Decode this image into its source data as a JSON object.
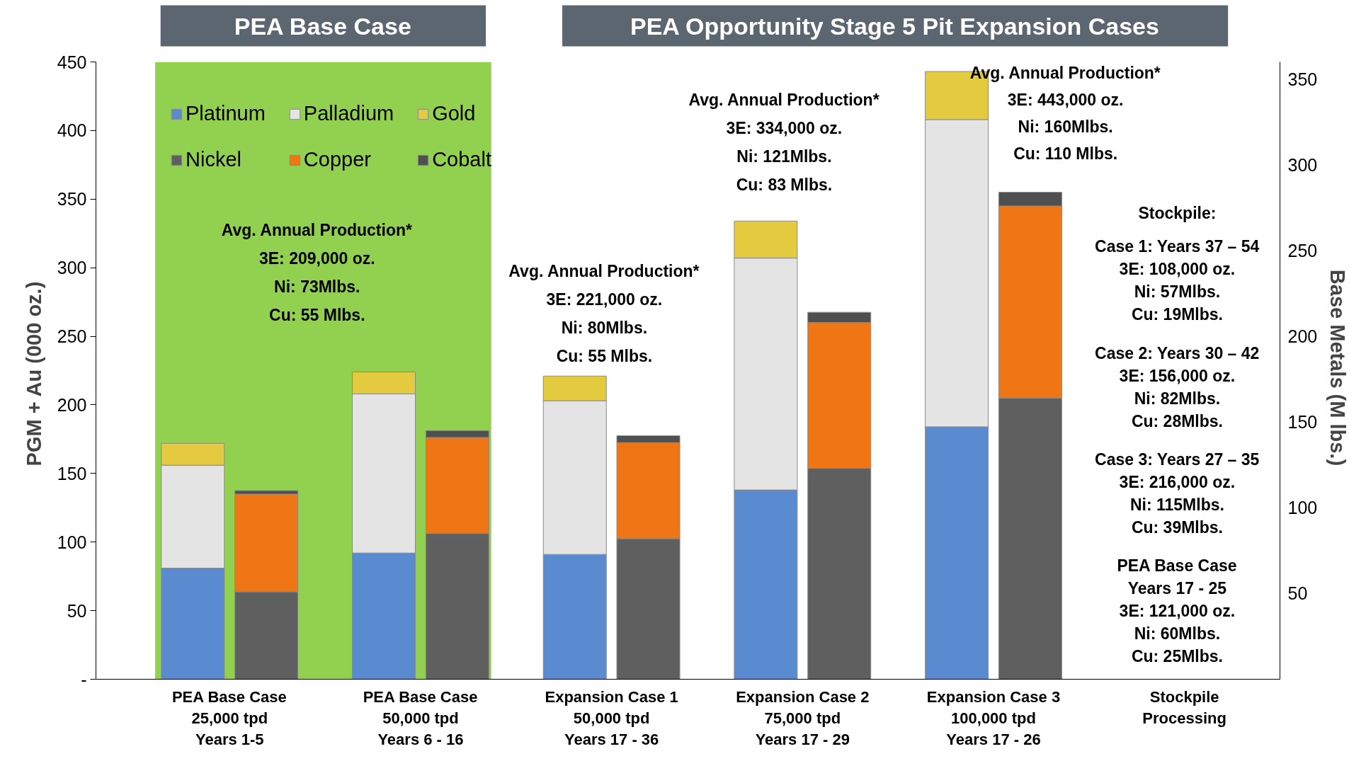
{
  "chart_data": {
    "type": "bar",
    "stacked": true,
    "categories": [
      "PEA Base Case\n25,000 tpd\nYears 1-5",
      "PEA Base Case\n50,000 tpd\nYears 6 - 16",
      "Expansion Case 1\n50,000 tpd\nYears 17 - 36",
      "Expansion Case 2\n75,000 tpd\nYears 17 - 29",
      "Expansion Case 3\n100,000 tpd\nYears 17 - 26",
      "Stockpile\nProcessing"
    ],
    "series": [
      {
        "name": "Platinum",
        "color": "#5a8ad0",
        "values": [
          81,
          92,
          91,
          138,
          184,
          null
        ]
      },
      {
        "name": "Palladium",
        "color": "#e4e4e4",
        "values": [
          75,
          116,
          112,
          169,
          224,
          null
        ]
      },
      {
        "name": "Gold",
        "color": "#e3ca3e",
        "values": [
          16,
          16,
          18,
          27,
          35,
          null
        ]
      },
      {
        "name": "Nickel",
        "color": "#5f5f5f",
        "axis": "y2",
        "values": [
          51,
          85,
          82,
          123,
          164,
          null
        ]
      },
      {
        "name": "Copper",
        "color": "#ef7515",
        "axis": "y2",
        "values": [
          57,
          56,
          56,
          85,
          112,
          null
        ]
      },
      {
        "name": "Cobalt",
        "color": "#4f4f4f",
        "axis": "y2",
        "values": [
          2,
          4,
          4,
          6,
          8,
          null
        ]
      }
    ],
    "ylabel": "PGM + Au  (000 oz.)",
    "y2label": "Base Metals  (M lbs.)",
    "ylim": [
      0,
      450
    ],
    "yticks": [
      {
        "value": 0,
        "label": "-"
      },
      50,
      100,
      150,
      200,
      250,
      300,
      350,
      400,
      450
    ],
    "y2lim": [
      0,
      360
    ],
    "y2ticks": [
      50,
      100,
      150,
      200,
      250,
      300,
      350
    ],
    "legend": "top left",
    "bands": [
      {
        "axis": "x",
        "from": "PEA Base Case\n25,000 tpd\nYears 1-5",
        "to": "PEA Base Case\n50,000 tpd\nYears 6 - 16",
        "label": "PEA Base Case",
        "color": "#92d050"
      }
    ],
    "annotations": [
      "PEA Opportunity Stage 5 Pit Expansion Cases",
      "Avg. Annual Production*\n3E: 209,000 oz.\nNi: 73Mlbs.\nCu: 55 Mlbs.",
      "Avg. Annual Production*\n3E: 221,000 oz.\nNi: 80Mlbs.\nCu: 55 Mlbs.",
      "Avg. Annual Production*\n3E: 334,000 oz.\nNi: 121Mlbs.\nCu: 83 Mlbs.",
      "Avg. Annual Production*\n3E: 443,000 oz.\nNi: 160Mlbs.\nCu: 110 Mlbs.",
      "Stockpile:",
      "Case 1: Years 37 – 54\n3E: 108,000 oz.\nNi: 57Mlbs.\nCu: 19Mlbs.",
      "Case 2: Years 30 – 42\n3E: 156,000 oz.\nNi: 82Mlbs.\nCu: 28Mlbs.",
      "Case 3: Years 27 – 35\n3E: 216,000 oz.\nNi: 115Mlbs.\nCu: 39Mlbs.",
      "PEA Base Case\nYears 17 - 25\n3E: 121,000 oz.\nNi: 60Mlbs.\nCu: 25Mlbs."
    ]
  }
}
